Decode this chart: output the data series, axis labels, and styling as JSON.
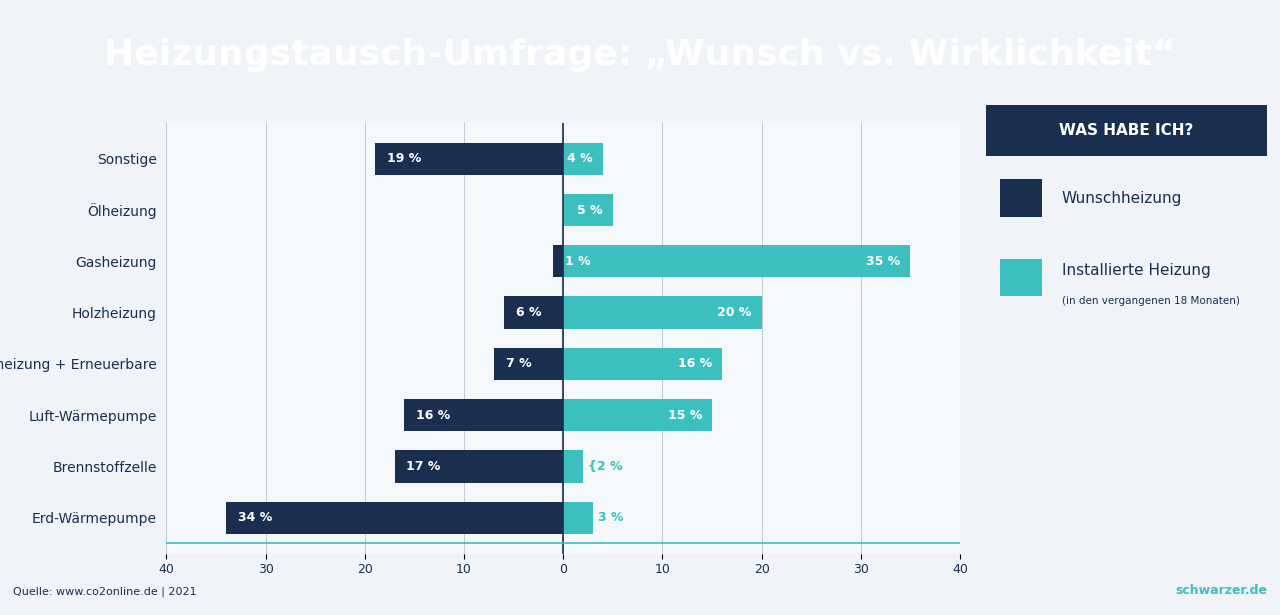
{
  "title": "Heizungstausch-Umfrage: „Wunsch vs. Wirklichkeit“",
  "title_bg": "#1a2e50",
  "chart_bg": "#f0f4f8",
  "categories": [
    "Erd-Wärmepumpe",
    "Brennstoffzelle",
    "Luft-Wärmepumpe",
    "Gasheizung + Erneuerbare",
    "Holzheizung",
    "Gasheizung",
    "Ölheizung",
    "Sonstige"
  ],
  "wunsch": [
    34,
    17,
    16,
    7,
    6,
    1,
    0,
    19
  ],
  "installiert": [
    3,
    2,
    15,
    16,
    20,
    35,
    5,
    4
  ],
  "wunsch_labels": [
    "34 %",
    "17 %",
    "16 %",
    "7 %",
    "6 %",
    "1 %",
    "",
    "19 %"
  ],
  "installiert_labels": [
    "3 %",
    "{2 %",
    "15 %",
    "16 %",
    "20 %",
    "35 %",
    "5 %",
    "4 %"
  ],
  "color_wunsch": "#1a2e50",
  "color_installiert": "#3bbfbf",
  "xlim": [
    -40,
    40
  ],
  "xticks": [
    -40,
    -30,
    -20,
    -10,
    0,
    10,
    20,
    30,
    40
  ],
  "xtick_labels": [
    "40",
    "30",
    "20",
    "10",
    "0",
    "10",
    "20",
    "30",
    "40"
  ],
  "legend_title": "WAS HABE ICH?",
  "legend_wunsch": "Wunschheizung",
  "legend_installiert": "Installierte Heizung",
  "legend_installiert_sub": "(in den vergangenen 18 Monaten)",
  "source": "Quelle: www.co2online.de | 2021",
  "brand": "schwarzer.de",
  "bar_height": 0.35
}
